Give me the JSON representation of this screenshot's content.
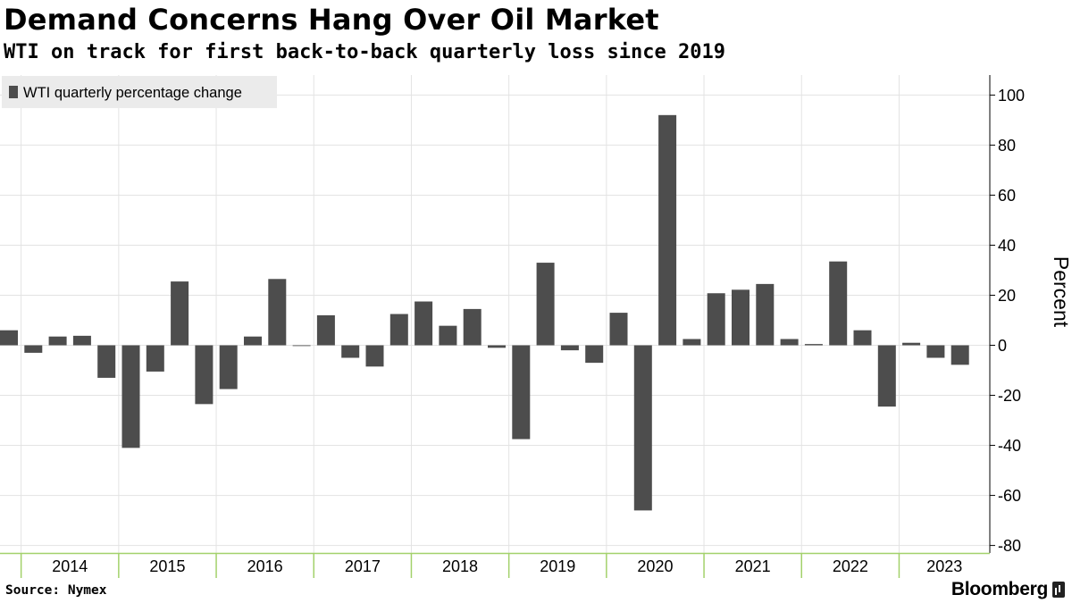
{
  "header": {
    "title": "Demand Concerns Hang Over Oil Market",
    "subtitle": "WTI on track for first back-to-back quarterly loss since 2019"
  },
  "footer": {
    "source": "Source: Nymex",
    "brand": "Bloomberg",
    "brand_icon": "bloomberg-terminal-icon"
  },
  "colors": {
    "bar": "#4d4d4d",
    "grid": "#e3e3e3",
    "axis_accent": "#a3d16b",
    "legend_bg": "#ebebeb"
  },
  "chart_data": {
    "type": "bar",
    "title": "Demand Concerns Hang Over Oil Market",
    "subtitle": "WTI on track for first back-to-back quarterly loss since 2019",
    "ylabel": "Percent",
    "ylim": [
      -83,
      108
    ],
    "yticks": [
      100,
      80,
      60,
      40,
      20,
      0,
      -20,
      -40,
      -60,
      -80
    ],
    "y_axis_side": "right",
    "grid": true,
    "legend_position": "top-left",
    "year_labels": [
      "2014",
      "2015",
      "2016",
      "2017",
      "2018",
      "2019",
      "2020",
      "2021",
      "2022",
      "2023"
    ],
    "categories": [
      "2013 Q4",
      "2014 Q1",
      "2014 Q2",
      "2014 Q3",
      "2014 Q4",
      "2015 Q1",
      "2015 Q2",
      "2015 Q3",
      "2015 Q4",
      "2016 Q1",
      "2016 Q2",
      "2016 Q3",
      "2016 Q4",
      "2017 Q1",
      "2017 Q2",
      "2017 Q3",
      "2017 Q4",
      "2018 Q1",
      "2018 Q2",
      "2018 Q3",
      "2018 Q4",
      "2019 Q1",
      "2019 Q2",
      "2019 Q3",
      "2019 Q4",
      "2020 Q1",
      "2020 Q2",
      "2020 Q3",
      "2020 Q4",
      "2021 Q1",
      "2021 Q2",
      "2021 Q3",
      "2021 Q4",
      "2022 Q1",
      "2022 Q2",
      "2022 Q3",
      "2022 Q4",
      "2023 Q1",
      "2023 Q2",
      "2023 Q3"
    ],
    "series": [
      {
        "name": "WTI quarterly percentage change",
        "values": [
          6.0,
          -3.0,
          3.5,
          3.8,
          -13.0,
          -41.0,
          -10.5,
          25.5,
          -23.5,
          -17.5,
          3.5,
          26.5,
          -0.3,
          12.0,
          -5.0,
          -8.5,
          12.5,
          17.5,
          7.8,
          14.5,
          -1.0,
          -37.5,
          33.0,
          -2.0,
          -7.0,
          13.0,
          -66.0,
          92.0,
          2.5,
          20.8,
          22.2,
          24.5,
          2.5,
          0.5,
          33.5,
          6.0,
          -24.5,
          1.0,
          -5.0,
          -7.8
        ]
      }
    ]
  }
}
